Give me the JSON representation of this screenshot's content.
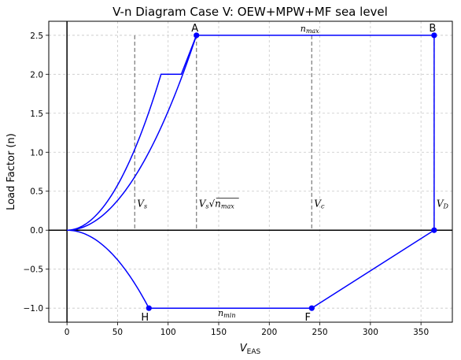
{
  "chart_data": {
    "type": "line",
    "title": "V-n Diagram Case V: OEW+MPW+MF sea level",
    "xlabel": "V",
    "xlabel_sub": "EAS",
    "ylabel": "Load Factor (n)",
    "xlim": [
      -18,
      381
    ],
    "ylim": [
      -1.18,
      2.68
    ],
    "xticks": [
      0,
      50,
      100,
      150,
      200,
      250,
      300,
      350
    ],
    "yticks": [
      -1.0,
      -0.5,
      0.0,
      0.5,
      1.0,
      1.5,
      2.0,
      2.5
    ],
    "ytick_labels": [
      "−1.0",
      "−0.5",
      "0.0",
      "0.5",
      "1.0",
      "1.5",
      "2.0",
      "2.5"
    ],
    "grid": true,
    "colors": {
      "envelope": "#0000ff",
      "reference": "#808080",
      "axis": "#000000",
      "grid": "#c8c8c8"
    },
    "series": [
      {
        "values": [
          [
            0,
            0
          ],
          [
            128,
            2.5
          ],
          [
            363,
            2.5
          ],
          [
            363,
            0
          ],
          [
            242,
            -1.0
          ],
          [
            81,
            -1.0
          ],
          [
            0,
            0
          ]
        ]
      },
      {
        "values": [
          [
            0,
            0
          ],
          [
            93,
            2.0
          ],
          [
            113,
            2.0
          ],
          [
            128,
            2.5
          ]
        ]
      }
    ],
    "stall_curve_peak_n": 2.5,
    "stall_curve_peak_v": 128,
    "negative_curve_min_v": 81,
    "reference_lines": [
      {
        "x": 67,
        "label": "V_s",
        "label_text": "V",
        "label_sub": "s"
      },
      {
        "x": 128,
        "label": "V_s√n_max",
        "label_text": "V",
        "label_sub": "s",
        "label_root": "n",
        "label_root_sub": "max"
      },
      {
        "x": 242,
        "label": "V_c",
        "label_text": "V",
        "label_sub": "c"
      },
      {
        "x": 363,
        "label": "V_D",
        "label_text": "V",
        "label_sub": "D"
      }
    ],
    "points": [
      {
        "name": "A",
        "x": 128,
        "y": 2.5
      },
      {
        "name": "B",
        "x": 363,
        "y": 2.5
      },
      {
        "name": "",
        "x": 363,
        "y": 0.0
      },
      {
        "name": "F",
        "x": 242,
        "y": -1.0
      },
      {
        "name": "H",
        "x": 81,
        "y": -1.0
      }
    ],
    "annotations": [
      {
        "text": "n",
        "sub": "max",
        "x": 240,
        "y": 2.5
      },
      {
        "text": "n",
        "sub": "min",
        "x": 158,
        "y": -1.0
      }
    ]
  }
}
